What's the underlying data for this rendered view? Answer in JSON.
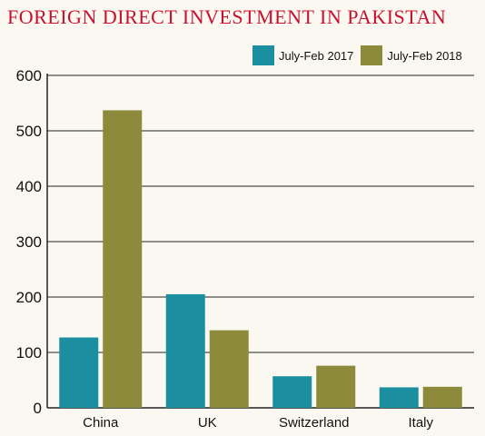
{
  "chart_data": {
    "type": "bar",
    "title": "FOREIGN DIRECT INVESTMENT IN PAKISTAN",
    "categories": [
      "China",
      "UK",
      "Switzerland",
      "Italy"
    ],
    "series": [
      {
        "name": "July-Feb 2017",
        "color": "#1b8fa0",
        "values": [
          127,
          205,
          57,
          37
        ]
      },
      {
        "name": "July-Feb 2018",
        "color": "#8d8a3b",
        "values": [
          537,
          140,
          76,
          38
        ]
      }
    ],
    "ylim": [
      0,
      600
    ],
    "yticks": [
      "0",
      "100",
      "200",
      "300",
      "400",
      "500",
      "600"
    ],
    "grid": true,
    "legend_position": "top-right"
  }
}
